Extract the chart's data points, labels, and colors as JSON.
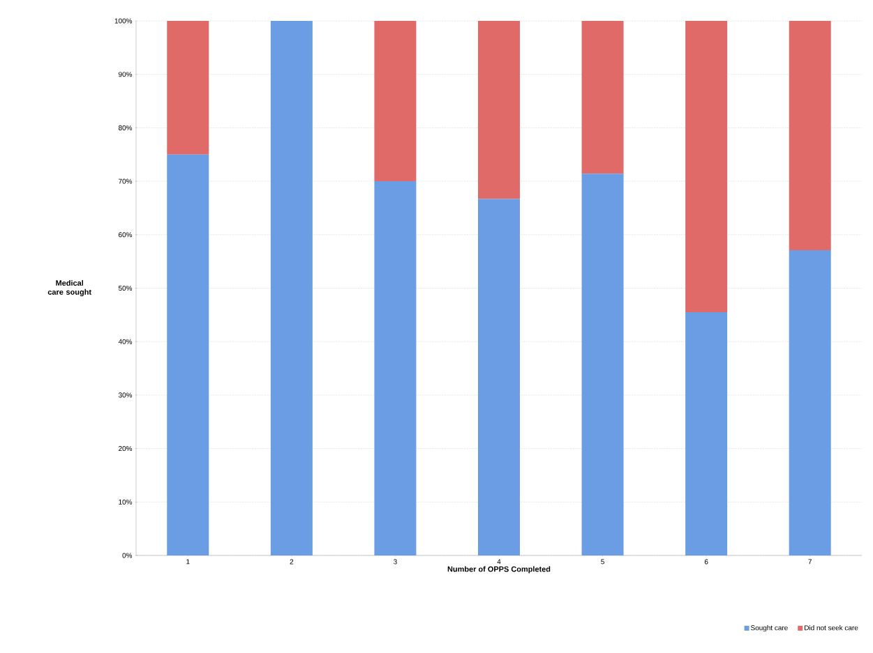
{
  "chart_data": {
    "type": "bar",
    "stacked": true,
    "xlabel": "Number of OPPS Completed",
    "ylabel": "Medical care sought",
    "categories": [
      "1",
      "2",
      "3",
      "4",
      "5",
      "6",
      "7"
    ],
    "series": [
      {
        "name": "Sought care",
        "color": "#6a9de3",
        "values": [
          75,
          100,
          70,
          66.7,
          71.4,
          45.5,
          57.1
        ]
      },
      {
        "name": "Did not seek care",
        "color": "#e06a68",
        "values": [
          25,
          0,
          30,
          33.3,
          28.6,
          54.5,
          42.9
        ]
      }
    ],
    "ylim": [
      0,
      100
    ],
    "yticks": [
      {
        "value": 0,
        "label": "0%"
      },
      {
        "value": 10,
        "label": "10%"
      },
      {
        "value": 20,
        "label": "20%"
      },
      {
        "value": 30,
        "label": "30%"
      },
      {
        "value": 40,
        "label": "40%"
      },
      {
        "value": 50,
        "label": "50%"
      },
      {
        "value": 60,
        "label": "60%"
      },
      {
        "value": 70,
        "label": "70%"
      },
      {
        "value": 80,
        "label": "80%"
      },
      {
        "value": 90,
        "label": "90%"
      },
      {
        "value": 100,
        "label": "100%"
      }
    ],
    "grid": "y",
    "legend": "bottom right"
  }
}
